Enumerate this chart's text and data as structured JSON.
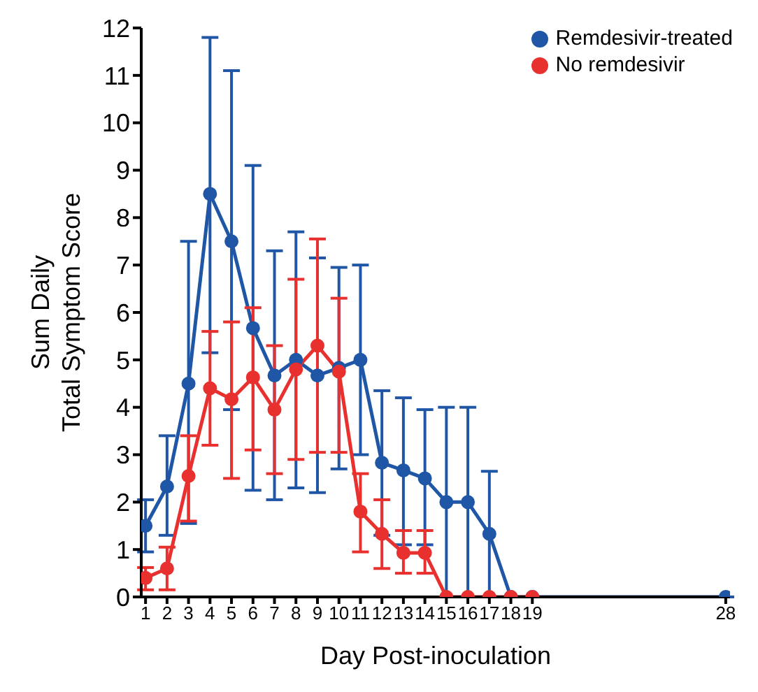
{
  "chart_data": {
    "type": "line",
    "xlabel": "Day Post-inoculation",
    "ylabel": "Sum Daily\nTotal Symptom Score",
    "xlim": [
      0.8,
      28.2
    ],
    "xticks": [
      1,
      2,
      3,
      4,
      5,
      6,
      7,
      8,
      9,
      10,
      11,
      12,
      13,
      14,
      15,
      16,
      17,
      18,
      19,
      28
    ],
    "ylim": [
      0,
      12
    ],
    "yticks": [
      0,
      1,
      2,
      3,
      4,
      5,
      6,
      7,
      8,
      9,
      10,
      11,
      12
    ],
    "grid": false,
    "legend": "top right",
    "marker": "circle",
    "line_style": "solid",
    "series": [
      {
        "name": "Remdesivir-treated",
        "color": "#1f56a6",
        "x": [
          1,
          2,
          3,
          4,
          5,
          6,
          7,
          8,
          9,
          10,
          11,
          12,
          13,
          14,
          15,
          16,
          17,
          18,
          19,
          28
        ],
        "values": [
          1.5,
          2.33,
          4.5,
          8.5,
          7.5,
          5.67,
          4.67,
          5.0,
          4.67,
          4.83,
          5.0,
          2.83,
          2.67,
          2.5,
          2.0,
          2.0,
          1.33,
          0,
          0,
          0
        ],
        "errors": [
          [
            0.95,
            2.05
          ],
          [
            1.3,
            3.4
          ],
          [
            1.55,
            7.5
          ],
          [
            5.15,
            11.8
          ],
          [
            3.95,
            11.1
          ],
          [
            2.25,
            9.1
          ],
          [
            2.05,
            7.3
          ],
          [
            2.3,
            7.7
          ],
          [
            2.2,
            7.15
          ],
          [
            2.7,
            6.95
          ],
          [
            3.0,
            7.0
          ],
          [
            1.3,
            4.35
          ],
          [
            1.1,
            4.2
          ],
          [
            1.1,
            3.95
          ],
          [
            0,
            4.0
          ],
          [
            0,
            4.0
          ],
          [
            0,
            2.65
          ],
          null,
          null,
          null
        ]
      },
      {
        "name": "No remdesivir",
        "color": "#e8312f",
        "x": [
          1,
          2,
          3,
          4,
          5,
          6,
          7,
          8,
          9,
          10,
          11,
          12,
          13,
          14,
          15,
          16,
          17,
          18,
          19
        ],
        "values": [
          0.4,
          0.6,
          2.55,
          4.4,
          4.17,
          4.63,
          3.95,
          4.8,
          5.3,
          4.75,
          1.8,
          1.33,
          0.93,
          0.93,
          0,
          0,
          0,
          0,
          0
        ],
        "errors": [
          [
            0.15,
            0.62
          ],
          [
            0.15,
            1.05
          ],
          [
            1.6,
            3.4
          ],
          [
            3.2,
            5.6
          ],
          [
            2.5,
            5.8
          ],
          [
            3.1,
            6.1
          ],
          [
            2.6,
            5.3
          ],
          [
            2.9,
            6.7
          ],
          [
            3.05,
            7.55
          ],
          [
            3.05,
            6.3
          ],
          [
            0.95,
            2.6
          ],
          [
            0.6,
            2.05
          ],
          [
            0.5,
            1.4
          ],
          [
            0.5,
            1.4
          ],
          null,
          null,
          null,
          null,
          null
        ]
      }
    ]
  }
}
